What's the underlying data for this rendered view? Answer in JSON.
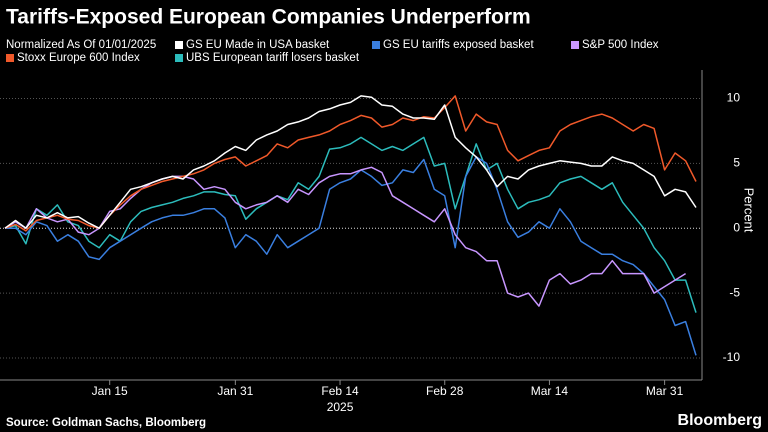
{
  "chart_data": {
    "type": "line",
    "title": "Tariffs-Exposed European Companies Underperform",
    "subtitle": "Normalized As Of 01/01/2025",
    "ylabel": "Percent",
    "xlabel": "2025",
    "source": "Source: Goldman Sachs, Bloomberg",
    "brand": "Bloomberg",
    "categories": [
      null,
      null,
      null,
      null,
      null,
      null,
      null,
      null,
      null,
      null,
      "Jan 15",
      null,
      null,
      null,
      null,
      null,
      null,
      null,
      null,
      null,
      null,
      null,
      "Jan 31",
      null,
      null,
      null,
      null,
      null,
      null,
      null,
      null,
      null,
      "Feb 14",
      null,
      null,
      null,
      null,
      null,
      null,
      null,
      null,
      null,
      "Feb 28",
      null,
      null,
      null,
      null,
      null,
      null,
      null,
      null,
      null,
      "Mar 14",
      null,
      null,
      null,
      null,
      null,
      null,
      null,
      null,
      null,
      null,
      "Mar 31",
      null,
      null,
      null
    ],
    "ylim": [
      -11.7,
      12.2
    ],
    "yticks": [
      -10,
      -5,
      0,
      5,
      10
    ],
    "grid": true,
    "series": [
      {
        "name": "GS EU Made in USA basket",
        "color": "#ffffff",
        "values": [
          0,
          0.6,
          0,
          1,
          0.8,
          1.2,
          0.8,
          0.9,
          0.4,
          0,
          1,
          2,
          3,
          3.2,
          3.5,
          3.8,
          4,
          3.8,
          4.5,
          4.8,
          5.2,
          5.8,
          6.3,
          6,
          6.8,
          7.2,
          7.5,
          8,
          8.2,
          8.5,
          9,
          9.2,
          9.5,
          9.7,
          10.2,
          10.1,
          9.5,
          9.4,
          8.8,
          8.5,
          8.5,
          8.4,
          9.5,
          7,
          6.2,
          5.5,
          4.5,
          3.2,
          4,
          3.8,
          4.5,
          4.8,
          5,
          5.2,
          5.1,
          5,
          4.8,
          4.8,
          5.5,
          5.2,
          5,
          4.5,
          4,
          2.5,
          3,
          2.8,
          1.6
        ]
      },
      {
        "name": "GS EU tariffs exposed basket",
        "color": "#3a7fe0",
        "values": [
          0,
          0,
          -0.5,
          0.5,
          0.2,
          -1,
          -0.5,
          -1,
          -2.2,
          -2.4,
          -1.5,
          -1,
          -0.5,
          0,
          0.5,
          0.8,
          1,
          1,
          1.2,
          1.5,
          1.5,
          0.8,
          -1.5,
          -0.5,
          -1,
          -2,
          -0.5,
          -1.5,
          -1,
          -0.5,
          0,
          3,
          3.5,
          3.8,
          4.5,
          4,
          3.3,
          3.5,
          4.5,
          4.3,
          5.3,
          3,
          2.5,
          -1.5,
          4,
          5.5,
          5,
          3,
          0.5,
          -0.7,
          -0.3,
          0.5,
          0,
          1.5,
          0.5,
          -1,
          -1.5,
          -2,
          -2,
          -2.5,
          -2.8,
          -3.5,
          -4.5,
          -5.5,
          -7.5,
          -7.2,
          -9.8
        ]
      },
      {
        "name": "S&P 500 Index",
        "color": "#c896ff",
        "values": [
          0,
          0.5,
          0,
          1.5,
          0.8,
          0.5,
          0.7,
          -0.3,
          -0.5,
          0,
          1.3,
          1.5,
          2.3,
          3,
          3.5,
          3.8,
          4,
          4,
          3.8,
          3,
          3.2,
          3,
          2,
          1.5,
          1.8,
          2,
          2.5,
          2,
          3,
          2.6,
          3.5,
          4,
          4.2,
          4.2,
          4.5,
          4.7,
          4.3,
          2.5,
          2,
          1.5,
          1,
          0.5,
          1.5,
          -0.5,
          -1.5,
          -1.8,
          -2.5,
          -2.5,
          -5,
          -5.3,
          -5,
          -6,
          -4,
          -3.5,
          -4.3,
          -4,
          -3.5,
          -3.5,
          -2.5,
          -3.5,
          -3.5,
          -3.5,
          -5,
          -4.5,
          -4,
          -3.5,
          null
        ]
      },
      {
        "name": "Stoxx Europe 600 Index",
        "color": "#f0592a",
        "values": [
          0,
          0.3,
          -0.2,
          0.6,
          0.8,
          1,
          0.7,
          0.6,
          0.2,
          0,
          1,
          1.8,
          2.5,
          3,
          3.3,
          3.6,
          3.8,
          4,
          4.2,
          4.5,
          5,
          5.3,
          5.5,
          4.8,
          5.2,
          5.6,
          6.5,
          6.2,
          6.8,
          7,
          7.2,
          7.5,
          8,
          8.3,
          8.7,
          8.5,
          7.8,
          8,
          8.5,
          8.3,
          8.6,
          8.5,
          9.3,
          10.2,
          7.5,
          8.8,
          8.2,
          8,
          6,
          5.2,
          5.6,
          6,
          6.2,
          7.5,
          8,
          8.3,
          8.6,
          8.8,
          8.5,
          8,
          7.5,
          8,
          7.7,
          4.5,
          5.8,
          5.2,
          3.6
        ]
      },
      {
        "name": "UBS European tariff losers basket",
        "color": "#2cbcbc",
        "values": [
          0,
          0.2,
          -1.2,
          1.5,
          1,
          1.8,
          0.5,
          0.2,
          -1,
          -1.5,
          -0.5,
          -1,
          0.5,
          1.3,
          1.6,
          1.8,
          2,
          2.3,
          2.5,
          2.8,
          2.8,
          2.6,
          2.5,
          0.7,
          1.5,
          2,
          2.5,
          2.2,
          3.5,
          3,
          4,
          6.1,
          6.2,
          6.5,
          7,
          6.5,
          6,
          6.3,
          6,
          6.5,
          7,
          4.8,
          5,
          1.5,
          4,
          6.5,
          4.5,
          5,
          3,
          1.5,
          2,
          2.2,
          2.5,
          3.5,
          3.8,
          4,
          3.5,
          3,
          3.5,
          2,
          1,
          0,
          -1.5,
          -2.5,
          -4,
          -4,
          -6.5
        ]
      }
    ]
  }
}
